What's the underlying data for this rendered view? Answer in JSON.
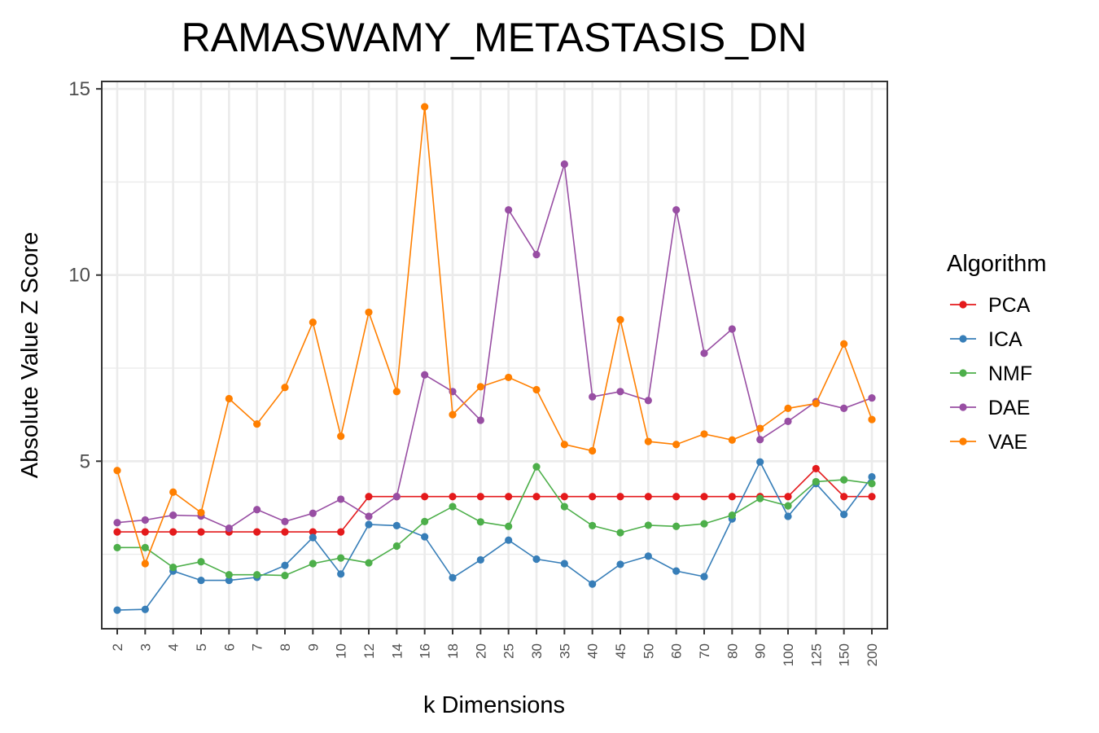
{
  "chart_data": {
    "type": "line",
    "title": "RAMASWAMY_METASTASIS_DN",
    "xlabel": "k Dimensions",
    "ylabel": "Absolute Value Z Score",
    "categories": [
      "2",
      "3",
      "4",
      "5",
      "6",
      "7",
      "8",
      "9",
      "10",
      "12",
      "14",
      "16",
      "18",
      "20",
      "25",
      "30",
      "35",
      "40",
      "45",
      "50",
      "60",
      "70",
      "80",
      "90",
      "100",
      "125",
      "150",
      "200"
    ],
    "ylim": [
      0.5,
      15.2
    ],
    "yticks": [
      5,
      10,
      15
    ],
    "ytick_labels": [
      "5",
      "10",
      "15"
    ],
    "grid": true,
    "legend": {
      "title": "Algorithm",
      "position": "right"
    },
    "series": [
      {
        "name": "PCA",
        "color": "#e41a1c",
        "values": [
          3.1,
          3.1,
          3.1,
          3.1,
          3.1,
          3.1,
          3.1,
          3.1,
          3.1,
          4.05,
          4.05,
          4.05,
          4.05,
          4.05,
          4.05,
          4.05,
          4.05,
          4.05,
          4.05,
          4.05,
          4.05,
          4.05,
          4.05,
          4.05,
          4.05,
          4.8,
          4.05,
          4.05
        ]
      },
      {
        "name": "ICA",
        "color": "#377eb8",
        "values": [
          1.0,
          1.02,
          2.05,
          1.8,
          1.8,
          1.88,
          2.2,
          2.95,
          1.97,
          3.3,
          3.27,
          2.97,
          1.87,
          2.35,
          2.88,
          2.37,
          2.25,
          1.7,
          2.23,
          2.45,
          2.05,
          1.9,
          3.45,
          4.98,
          3.52,
          4.4,
          3.57,
          4.58
        ]
      },
      {
        "name": "NMF",
        "color": "#4daf4a",
        "values": [
          2.68,
          2.68,
          2.15,
          2.3,
          1.95,
          1.95,
          1.93,
          2.25,
          2.4,
          2.27,
          2.72,
          3.38,
          3.78,
          3.37,
          3.25,
          4.85,
          3.78,
          3.27,
          3.08,
          3.28,
          3.25,
          3.32,
          3.55,
          4.0,
          3.8,
          4.45,
          4.5,
          4.4
        ]
      },
      {
        "name": "DAE",
        "color": "#984ea3",
        "values": [
          3.35,
          3.42,
          3.55,
          3.53,
          3.2,
          3.7,
          3.38,
          3.6,
          3.98,
          3.52,
          4.05,
          7.32,
          6.87,
          6.1,
          11.75,
          10.55,
          12.98,
          6.73,
          6.87,
          6.63,
          11.75,
          7.9,
          8.55,
          5.58,
          6.07,
          6.6,
          6.42,
          6.7
        ]
      },
      {
        "name": "VAE",
        "color": "#ff7f00",
        "values": [
          4.75,
          2.25,
          4.17,
          3.62,
          6.68,
          6.0,
          6.98,
          8.73,
          5.67,
          9.0,
          6.87,
          14.52,
          6.25,
          7.0,
          7.25,
          6.92,
          5.45,
          5.28,
          8.8,
          5.53,
          5.45,
          5.73,
          5.57,
          5.88,
          6.42,
          6.55,
          8.15,
          6.12
        ]
      }
    ]
  }
}
